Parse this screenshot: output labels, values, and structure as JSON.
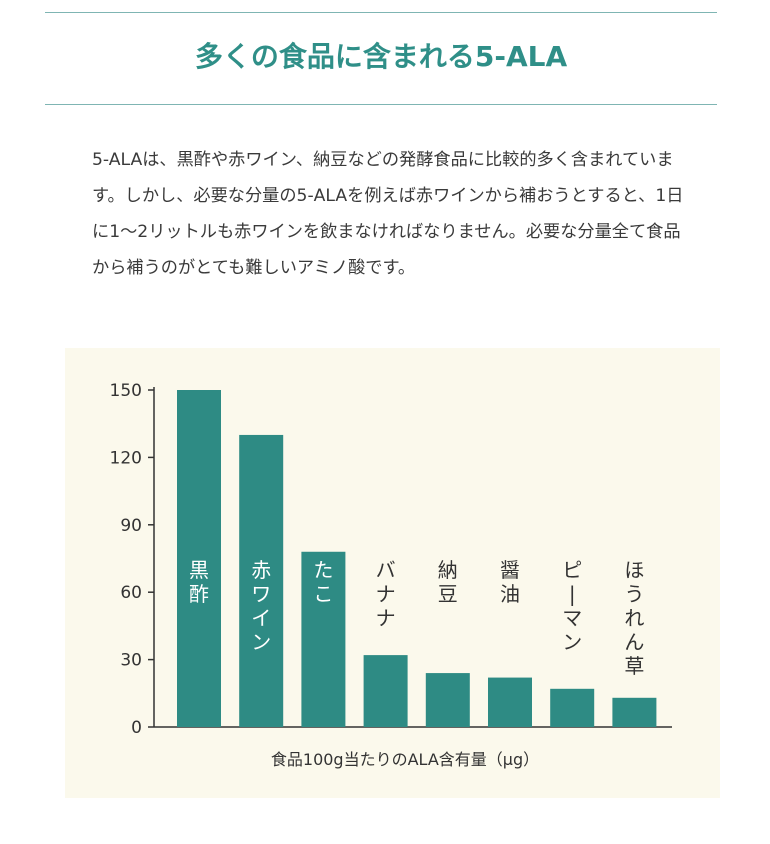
{
  "page": {
    "heading": "多くの食品に含まれる5-ALA",
    "body": "5-ALAは、黒酢や赤ワイン、納豆などの発酵食品に比較的多く含まれています。しかし、必要な分量の5-ALAを例えば赤ワインから補おうとすると、1日に1〜2リットルも赤ワインを飲まなければなりません。必要な分量全て食品から補うのがとても難しいアミノ酸です。"
  },
  "colors": {
    "accent": "#2f8f88",
    "bar": "#2e8b84",
    "panel": "#fbf9ec",
    "rule": "#7fb5b3"
  },
  "chart_data": {
    "type": "bar",
    "categories": [
      "黒酢",
      "赤ワイン",
      "たこ",
      "バナナ",
      "納豆",
      "醤油",
      "ピーマン",
      "ほうれん草"
    ],
    "values": [
      150,
      130,
      78,
      32,
      24,
      22,
      17,
      13
    ],
    "xlabel": "食品100g当たりのALA含有量（μg）",
    "ylabel": "",
    "ylim": [
      0,
      150
    ],
    "yticks": [
      0,
      30,
      60,
      90,
      120,
      150
    ],
    "grid": false,
    "legend": "none"
  }
}
